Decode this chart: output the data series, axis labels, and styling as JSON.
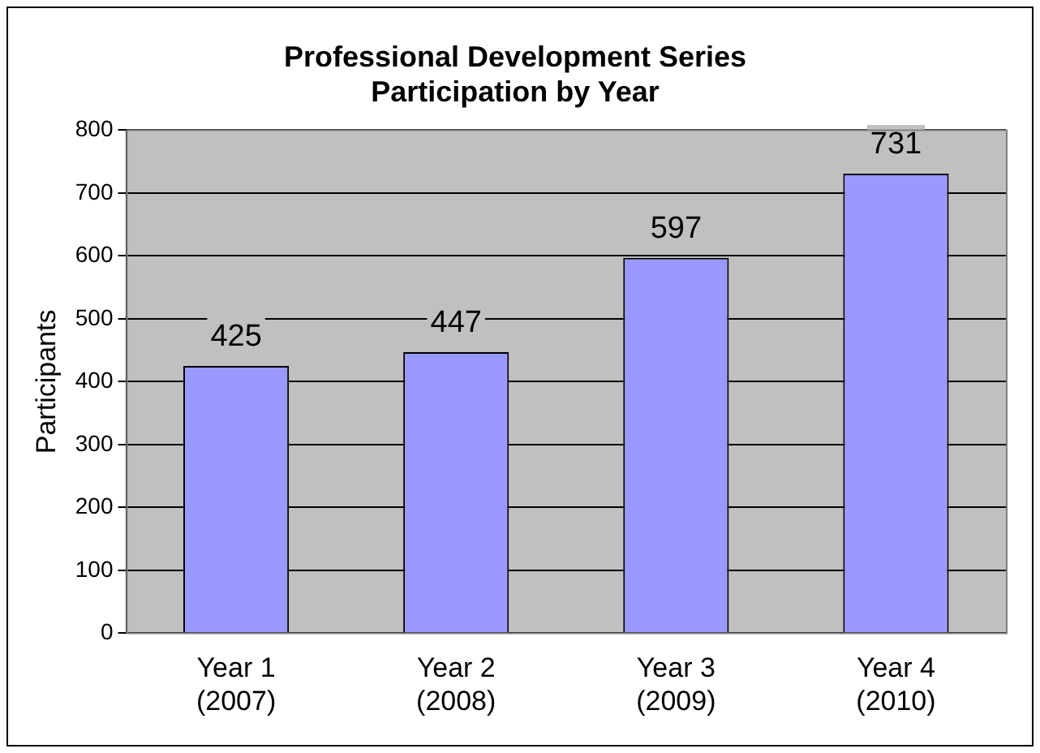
{
  "chart_data": {
    "type": "bar",
    "title": "Professional Development Series\nParticipation by Year",
    "ylabel": "Participants",
    "categories": [
      "Year 1\n(2007)",
      "Year 2\n(2008)",
      "Year 3\n(2009)",
      "Year 4\n(2010)"
    ],
    "values": [
      425,
      447,
      597,
      731
    ],
    "color": "#9999ff",
    "ylim": [
      0,
      800
    ],
    "yticks": [
      0,
      100,
      200,
      300,
      400,
      500,
      600,
      700,
      800
    ],
    "grid": "y",
    "legend": false,
    "data_labels": true
  }
}
